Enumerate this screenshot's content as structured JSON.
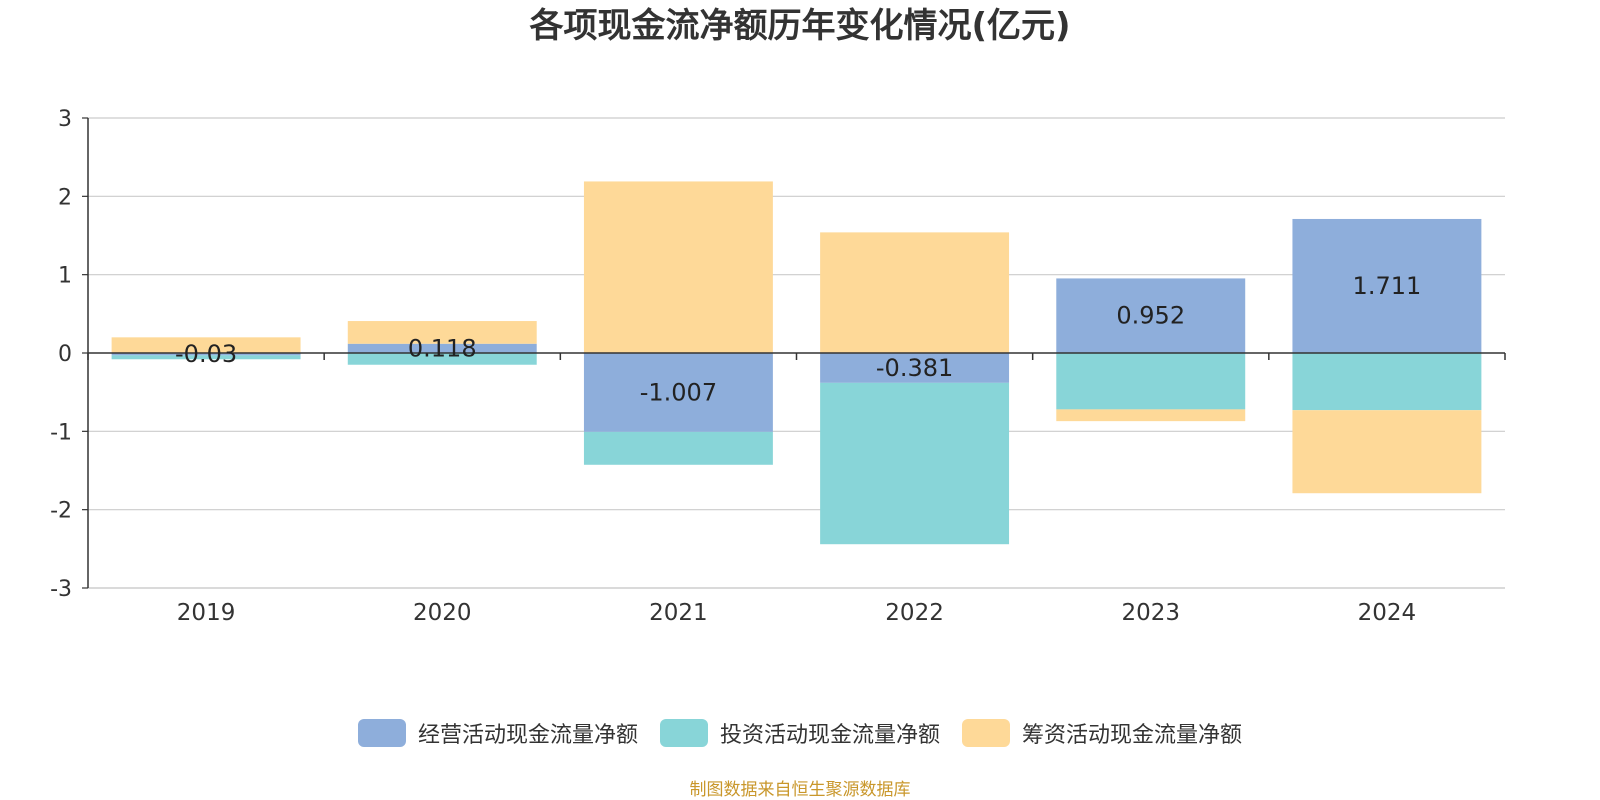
{
  "chart_data": {
    "type": "bar",
    "stacked": true,
    "title": "各项现金流净额历年变化情况(亿元)",
    "categories": [
      "2019",
      "2020",
      "2021",
      "2022",
      "2023",
      "2024"
    ],
    "ylim": [
      -3,
      3
    ],
    "yticks": [
      3,
      2,
      1,
      0,
      -1,
      -2,
      -3
    ],
    "grid": true,
    "legend_position": "bottom-center",
    "series": [
      {
        "name": "经营活动现金流量净额",
        "color": "#8eaedb",
        "values": [
          -0.03,
          0.118,
          -1.007,
          -0.381,
          0.952,
          1.711
        ],
        "labels": [
          "-0.03",
          "0.118",
          "-1.007",
          "-0.381",
          "0.952",
          "1.711"
        ]
      },
      {
        "name": "投资活动现金流量净额",
        "color": "#88d5d8",
        "values": [
          -0.05,
          -0.15,
          -0.42,
          -2.06,
          -0.72,
          -0.73
        ]
      },
      {
        "name": "筹资活动现金流量净额",
        "color": "#fed998",
        "values": [
          0.2,
          0.29,
          2.19,
          1.54,
          -0.15,
          -1.06
        ]
      }
    ]
  },
  "source_note": "制图数据来自恒生聚源数据库"
}
